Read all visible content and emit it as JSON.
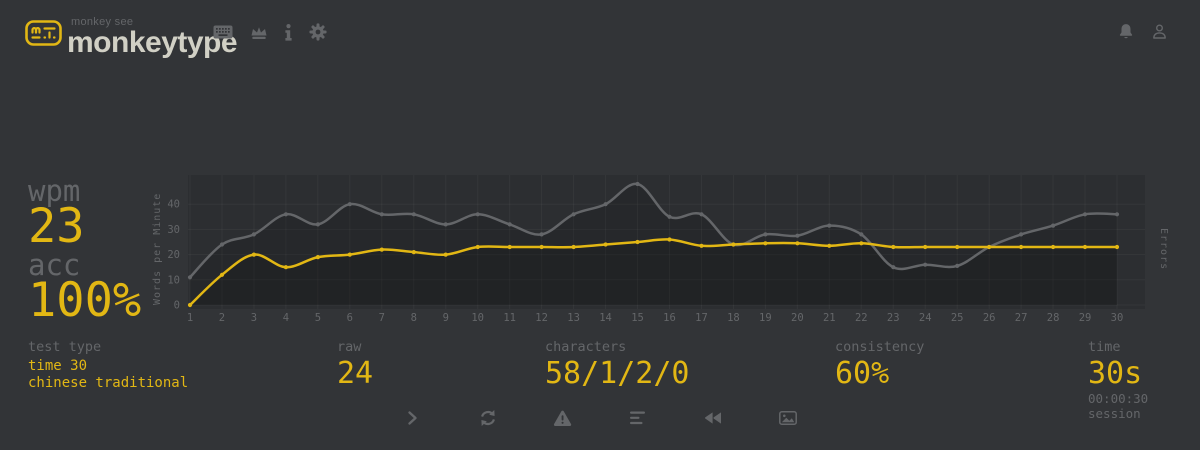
{
  "theme": {
    "background": "#323437",
    "main": "#e2b714",
    "sub": "#646669",
    "text": "#d1d0c5",
    "chart_background": "#2c2e31"
  },
  "header": {
    "brand_small": "monkey see",
    "brand": "monkeytype",
    "nav_icons": [
      "keyboard-icon",
      "crown-icon",
      "info-icon",
      "gear-icon"
    ],
    "right_icons": [
      "bell-icon",
      "user-icon"
    ]
  },
  "stats": {
    "wpm_label": "wpm",
    "wpm_value": "23",
    "acc_label": "acc",
    "acc_value": "100%"
  },
  "chart_data": {
    "type": "line",
    "x": [
      1,
      2,
      3,
      4,
      5,
      6,
      7,
      8,
      9,
      10,
      11,
      12,
      13,
      14,
      15,
      16,
      17,
      18,
      19,
      20,
      21,
      22,
      23,
      24,
      25,
      26,
      27,
      28,
      29,
      30
    ],
    "series": [
      {
        "name": "raw",
        "color": "#646669",
        "values": [
          11,
          24,
          28,
          36,
          32,
          40,
          36,
          36,
          32,
          36,
          32,
          28,
          36,
          40,
          48,
          35,
          36,
          24,
          28,
          27.5,
          31.5,
          28,
          15,
          16,
          15.5,
          23,
          28,
          31.5,
          36,
          36
        ]
      },
      {
        "name": "wpm",
        "color": "#e2b714",
        "values": [
          0,
          12,
          20,
          15,
          19,
          20,
          22,
          21,
          20,
          23,
          23,
          23,
          23,
          24,
          25,
          26,
          23.5,
          24,
          24.5,
          24.5,
          23.5,
          24.5,
          23,
          23,
          23,
          23,
          23,
          23,
          23,
          23
        ]
      }
    ],
    "title": "",
    "xlabel": "",
    "ylabel_left": "Words per Minute",
    "ylabel_right": "Errors",
    "yticks": [
      0,
      10,
      20,
      30,
      40
    ],
    "ylim": [
      0,
      51.5
    ],
    "grid": true,
    "legend": "none",
    "fill_under_lines": true
  },
  "result_details": {
    "test_type": {
      "label": "test type",
      "lines": [
        "time 30",
        "chinese traditional"
      ]
    },
    "raw": {
      "label": "raw",
      "value": "24"
    },
    "characters": {
      "label": "characters",
      "value": "58/1/2/0"
    },
    "consistency": {
      "label": "consistency",
      "value": "60%"
    },
    "time": {
      "label": "time",
      "value": "30s",
      "sub": "00:00:30 session"
    }
  },
  "actions": [
    "next-test",
    "repeat-test",
    "practise-words",
    "words-history",
    "watch-replay",
    "copy-screenshot"
  ]
}
